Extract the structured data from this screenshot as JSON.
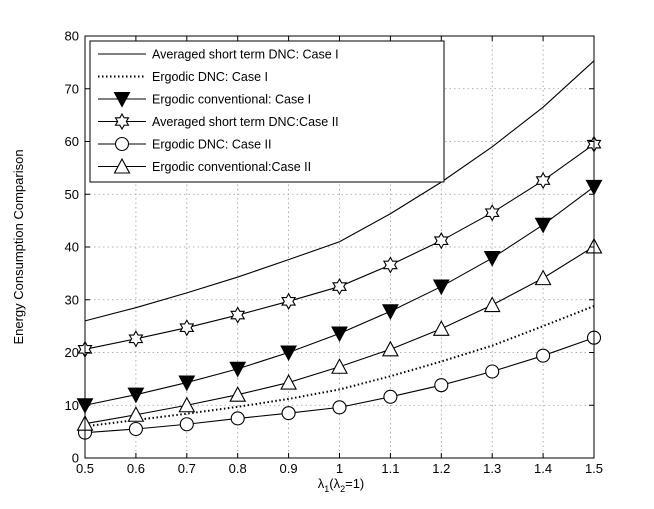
{
  "chart_data": {
    "type": "line",
    "title": "",
    "xlabel": "λ1(λ2=1)",
    "xlabel_parts": {
      "main": "λ",
      "sub1": "1",
      "mid": "(λ",
      "sub2": "2",
      "tail": "=1)"
    },
    "ylabel": "Energy Consumption Comparison",
    "xlim": [
      0.5,
      1.5
    ],
    "ylim": [
      0,
      80
    ],
    "xticks": [
      "0.5",
      "0.6",
      "0.7",
      "0.8",
      "0.9",
      "1",
      "1.1",
      "1.2",
      "1.3",
      "1.4",
      "1.5"
    ],
    "yticks": [
      "0",
      "10",
      "20",
      "30",
      "40",
      "50",
      "60",
      "70",
      "80"
    ],
    "grid": true,
    "legend_position": "top-left",
    "x": [
      0.5,
      0.6,
      0.7,
      0.8,
      0.9,
      1.0,
      1.1,
      1.2,
      1.3,
      1.4,
      1.5
    ],
    "series": [
      {
        "name": "Averaged short term DNC: Case I",
        "style": "solid",
        "marker": "none",
        "values": [
          26,
          28.5,
          31.3,
          34.3,
          37.6,
          41,
          46.3,
          52.3,
          59,
          66.5,
          75.3
        ]
      },
      {
        "name": "Ergodic DNC: Case I",
        "style": "dotted",
        "marker": "none",
        "values": [
          6,
          7.2,
          8.4,
          9.7,
          11.2,
          13,
          15.5,
          18.3,
          21.3,
          25,
          28.8
        ]
      },
      {
        "name": "Ergodic conventional: Case I",
        "style": "solid",
        "marker": "triangle-down-filled",
        "values": [
          10,
          12,
          14.3,
          16.9,
          20,
          23.6,
          27.8,
          32.5,
          37.9,
          44.2,
          51.4
        ]
      },
      {
        "name": "Averaged short term DNC:Case II",
        "style": "solid",
        "marker": "hexagram",
        "values": [
          20.6,
          22.6,
          24.7,
          27.1,
          29.7,
          32.5,
          36.6,
          41.2,
          46.5,
          52.6,
          59.5
        ]
      },
      {
        "name": "Ergodic DNC: Case II",
        "style": "solid",
        "marker": "circle",
        "values": [
          4.8,
          5.5,
          6.4,
          7.5,
          8.5,
          9.6,
          11.6,
          13.8,
          16.4,
          19.4,
          22.8
        ]
      },
      {
        "name": "Ergodic conventional:Case II",
        "style": "solid",
        "marker": "triangle-up",
        "values": [
          6.5,
          8.2,
          10,
          12,
          14.3,
          17.3,
          20.6,
          24.5,
          29,
          34.1,
          40.1
        ]
      }
    ]
  }
}
